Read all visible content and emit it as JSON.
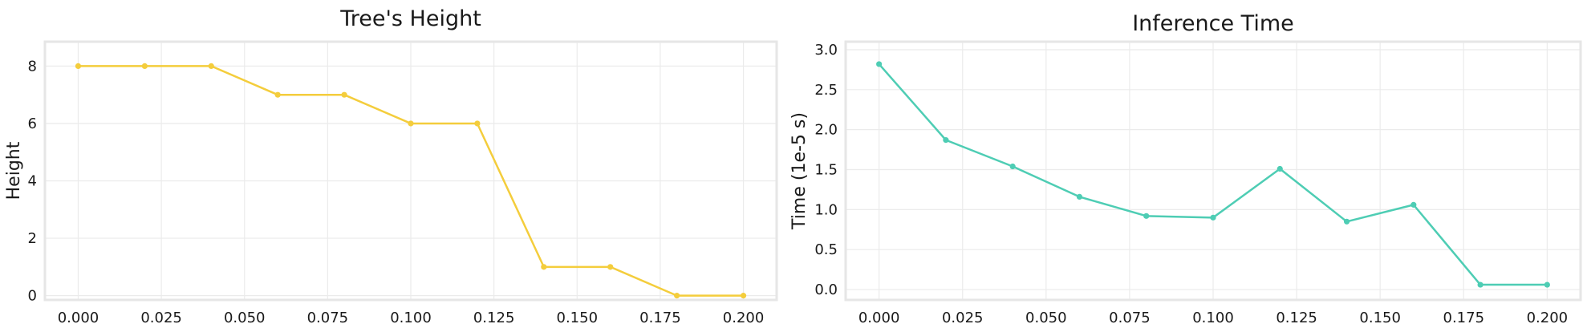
{
  "chart_data": [
    {
      "type": "line",
      "title": "Tree's Height",
      "xlabel": "",
      "ylabel": "Height",
      "x": [
        0.0,
        0.02,
        0.04,
        0.06,
        0.08,
        0.1,
        0.12,
        0.14,
        0.16,
        0.18,
        0.2
      ],
      "series": [
        {
          "values": [
            8,
            8,
            8,
            7,
            7,
            6,
            6,
            1,
            1,
            0,
            0
          ],
          "color": "#f4cd3c"
        }
      ],
      "xticks": [
        "0.000",
        "0.025",
        "0.050",
        "0.075",
        "0.100",
        "0.125",
        "0.150",
        "0.175",
        "0.200"
      ],
      "xtick_values": [
        0.0,
        0.025,
        0.05,
        0.075,
        0.1,
        0.125,
        0.15,
        0.175,
        0.2
      ],
      "yticks": [
        "0",
        "2",
        "4",
        "6",
        "8"
      ],
      "ytick_values": [
        0,
        2,
        4,
        6,
        8
      ],
      "xlim": [
        -0.01,
        0.21
      ],
      "ylim": [
        -0.15,
        8.85
      ],
      "grid": true
    },
    {
      "type": "line",
      "title": "Inference Time",
      "xlabel": "",
      "ylabel": "Time (1e-5 s)",
      "x": [
        0.0,
        0.02,
        0.04,
        0.06,
        0.08,
        0.1,
        0.12,
        0.14,
        0.16,
        0.18,
        0.2
      ],
      "series": [
        {
          "values": [
            2.82,
            1.87,
            1.54,
            1.16,
            0.92,
            0.9,
            1.51,
            0.85,
            1.06,
            0.06,
            0.06
          ],
          "color": "#4ecdb4"
        }
      ],
      "xticks": [
        "0.000",
        "0.025",
        "0.050",
        "0.075",
        "0.100",
        "0.125",
        "0.150",
        "0.175",
        "0.200"
      ],
      "xtick_values": [
        0.0,
        0.025,
        0.05,
        0.075,
        0.1,
        0.125,
        0.15,
        0.175,
        0.2
      ],
      "yticks": [
        "0.0",
        "0.5",
        "1.0",
        "1.5",
        "2.0",
        "2.5",
        "3.0"
      ],
      "ytick_values": [
        0.0,
        0.5,
        1.0,
        1.5,
        2.0,
        2.5,
        3.0
      ],
      "xlim": [
        -0.01,
        0.21
      ],
      "ylim": [
        -0.13,
        3.1
      ],
      "grid": true
    }
  ]
}
